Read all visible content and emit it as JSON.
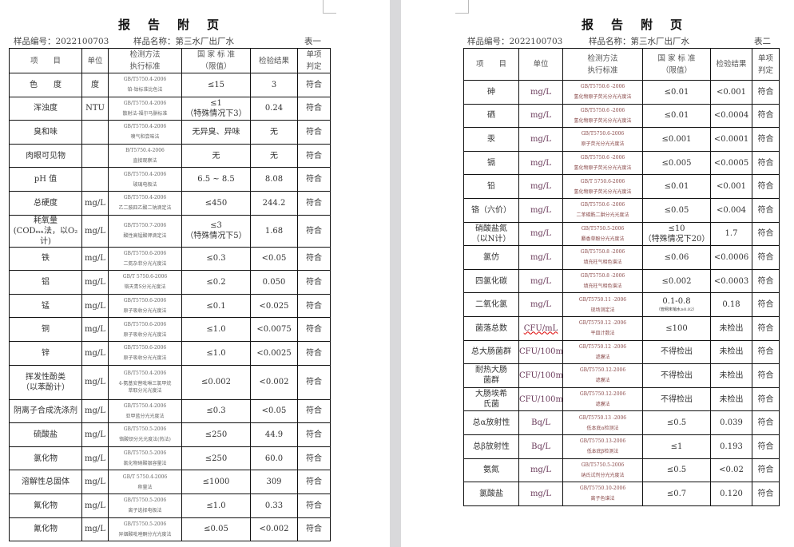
{
  "pages": [
    {
      "title": "报告附页",
      "sample_no": "样品编号：2022100703",
      "sample_name": "样品名称：第三水厂出厂水",
      "table_label": "表一",
      "headers": [
        "项　　目",
        "单位",
        "检测方法\n执行标准",
        "国 家 标 准\n（限值）",
        "检验结果",
        "单项\n判定"
      ],
      "rows": [
        {
          "item": "色　　度",
          "unit": "度",
          "std": "GB/T5750.4-2006",
          "method": "铂-钴标准比色法",
          "limit": "≤15",
          "result": "3",
          "verdict": "符合"
        },
        {
          "item": "浑浊度",
          "unit": "NTU",
          "std": "GB/T5750.4-2006",
          "method": "散射法-福尔马肼标准",
          "limit": "≤1\n（特殊情况下3）",
          "result": "0.24",
          "verdict": "符合"
        },
        {
          "item": "臭和味",
          "unit": "",
          "std": "GB/T5750.4-2006",
          "method": "嗅气和尝味法",
          "limit": "无异臭、异味",
          "result": "无",
          "verdict": "符合"
        },
        {
          "item": "肉眼可见物",
          "unit": "",
          "std": "B/T5750.4-2006",
          "method": "直接观察法",
          "limit": "无",
          "result": "无",
          "verdict": "符合"
        },
        {
          "item": "pH 值",
          "unit": "",
          "std": "GB/T5750.4-2006",
          "method": "玻璃电极法",
          "limit": "6.5 ~ 8.5",
          "result": "8.08",
          "verdict": "符合"
        },
        {
          "item": "总硬度",
          "unit": "mg/L",
          "std": "GB/T5750.4-2006",
          "method": "乙二胺四乙酸二钠滴定法",
          "limit": "≤450",
          "result": "244.2",
          "verdict": "符合"
        },
        {
          "item": "耗氧量\n(CODₘₙ法，以O₂计)",
          "unit": "mg/L",
          "std": "GB/T5750.7-2006",
          "method": "酸性高锰酸钾滴定法",
          "limit": "≤3\n（特殊情况下5）",
          "result": "1.68",
          "verdict": "符合"
        },
        {
          "item": "铁",
          "unit": "mg/L",
          "std": "GB/T5750.6-2006",
          "method": "二氮杂菲分光光度法",
          "limit": "≤0.3",
          "result": "<0.05",
          "verdict": "符合"
        },
        {
          "item": "铝",
          "unit": "mg/L",
          "std": "GB/T 5750.6-2006",
          "method": "铬天青S分光光度法",
          "limit": "≤0.2",
          "result": "0.050",
          "verdict": "符合"
        },
        {
          "item": "锰",
          "unit": "mg/L",
          "std": "GB/T5750.6-2006",
          "method": "原子吸收分光光度法",
          "limit": "≤0.1",
          "result": "<0.025",
          "verdict": "符合"
        },
        {
          "item": "铜",
          "unit": "mg/L",
          "std": "GB/T5750.6-2006",
          "method": "原子吸收分光光度法",
          "limit": "≤1.0",
          "result": "<0.0075",
          "verdict": "符合"
        },
        {
          "item": "锌",
          "unit": "mg/L",
          "std": "GB/T5750.6-2006",
          "method": "原子吸收分光光度法",
          "limit": "≤1.0",
          "result": "<0.0025",
          "verdict": "符合"
        },
        {
          "item": "挥发性酚类\n（以苯酚计）",
          "unit": "mg/L",
          "std": "GB/T5750.4-2006",
          "method": "4-氨基安替吡啉三氯甲烷\n萃取分光光度法",
          "limit": "≤0.002",
          "result": "<0.002",
          "verdict": "符合"
        },
        {
          "item": "阴离子合成洗涤剂",
          "unit": "mg/L",
          "std": "GB/T5750.4-2006",
          "method": "亚甲蓝分光光度法",
          "limit": "≤0.3",
          "result": "<0.05",
          "verdict": "符合"
        },
        {
          "item": "硫酸盐",
          "unit": "mg/L",
          "std": "GB/T5750.5-2006",
          "method": "铬酸钡分光光度法(热法)",
          "limit": "≤250",
          "result": "44.9",
          "verdict": "符合"
        },
        {
          "item": "氯化物",
          "unit": "mg/L",
          "std": "GB/T5750.5-2006",
          "method": "氯化物硝酸银容量法",
          "limit": "≤250",
          "result": "60.0",
          "verdict": "符合"
        },
        {
          "item": "溶解性总固体",
          "unit": "mg/L",
          "std": "GB/T 5750.4-2006",
          "method": "称量法",
          "limit": "≤1000",
          "result": "309",
          "verdict": "符合"
        },
        {
          "item": "氟化物",
          "unit": "mg/L",
          "std": "GB/T5750.5-2006",
          "method": "离子选择电极法",
          "limit": "≤1.0",
          "result": "0.33",
          "verdict": "符合"
        },
        {
          "item": "氰化物",
          "unit": "mg/L",
          "std": "GB/T5750.5-2006",
          "method": "异烟酸吡唑酮分光光度法",
          "limit": "≤0.05",
          "result": "<0.002",
          "verdict": "符合"
        }
      ]
    },
    {
      "title": "报告附页",
      "sample_no": "样品编号：2022100703",
      "sample_name": "样品名称：第三水厂出厂水",
      "table_label": "表二",
      "headers": [
        "项　　目",
        "单位",
        "检测方法\n执行标准",
        "国 家 标 准\n（限值）",
        "检验结果",
        "单项\n判定"
      ],
      "rows": [
        {
          "item": "砷",
          "unit": "mg/L",
          "std": "GB/T5750.6 -2006",
          "method": "氢化物原子荧光分光光度法",
          "limit": "≤0.01",
          "result": "<0.001",
          "verdict": "符合"
        },
        {
          "item": "硒",
          "unit": "mg/L",
          "std": "GB/T5750.6 -2006",
          "method": "氢化物原子荧光分光光度法",
          "limit": "≤0.01",
          "result": "<0.0004",
          "verdict": "符合"
        },
        {
          "item": "汞",
          "unit": "mg/L",
          "std": "GB/T5750.6-2006",
          "method": "原子荧光分光光度法",
          "limit": "≤0.001",
          "result": "<0.0001",
          "verdict": "符合"
        },
        {
          "item": "镉",
          "unit": "mg/L",
          "std": "GB/T5750.6 -2006",
          "method": "氢化物原子荧光分光光度法",
          "limit": "≤0.005",
          "result": "<0.0005",
          "verdict": "符合"
        },
        {
          "item": "铅",
          "unit": "mg/L",
          "std": "GB/T 5750.6-2006",
          "method": "氢化物原子荧光分光光度法",
          "limit": "≤0.01",
          "result": "<0.001",
          "verdict": "符合"
        },
        {
          "item": "铬（六价）",
          "unit": "mg/L",
          "std": "GB/T5750.6 -2006",
          "method": "二苯碳酰二肼分光光度法",
          "limit": "≤0.05",
          "result": "<0.004",
          "verdict": "符合"
        },
        {
          "item": "硝酸盐氮\n（以N计）",
          "unit": "mg/L",
          "std": "GB/T5750.5-2006",
          "method": "麝香草酚分光光度法",
          "limit": "≤10\n（特殊情况下20）",
          "result": "1.7",
          "verdict": "符合"
        },
        {
          "item": "氯仿",
          "unit": "mg/L",
          "std": "GB/T5750.8 -2006",
          "method": "填充柱气相色谱法",
          "limit": "≤0.06",
          "result": "<0.0006",
          "verdict": "符合"
        },
        {
          "item": "四氯化碳",
          "unit": "mg/L",
          "std": "GB/T5750.8 -2006",
          "method": "填充柱气相色谱法",
          "limit": "≤0.002",
          "result": "<0.0003",
          "verdict": "符合"
        },
        {
          "item": "二氧化氯",
          "unit": "mg/L",
          "std": "GB/T5750.11 -2006",
          "method": "现场测定法",
          "limit": "0.1-0.8",
          "limit_note": "（管网末梢水≥0.02）",
          "result": "0.18",
          "verdict": "符合"
        },
        {
          "item": "菌落总数",
          "unit": "CFU/mL",
          "std": "GB/T5750.12 -2006",
          "method": "平皿计数法",
          "limit": "≤100",
          "result": "未检出",
          "verdict": "符合"
        },
        {
          "item": "总大肠菌群",
          "unit": "CFU/100mL",
          "std": "GB/T5750.12 -2006",
          "method": "滤膜法",
          "limit": "不得检出",
          "result": "未检出",
          "verdict": "符合"
        },
        {
          "item": "耐热大肠\n菌群",
          "unit": "CFU/100mL",
          "std": "GB/T5750.12-2006",
          "method": "滤膜法",
          "limit": "不得检出",
          "result": "未检出",
          "verdict": "符合"
        },
        {
          "item": "大肠埃希\n氏菌",
          "unit": "CFU/100mL",
          "std": "GB/T5750.12-2006",
          "method": "滤膜法",
          "limit": "不得检出",
          "result": "未检出",
          "verdict": "符合"
        },
        {
          "item": "总α放射性",
          "unit": "Bq/L",
          "std": "GB/T5750.13 -2006",
          "method": "低本底α检测法",
          "limit": "≤0.5",
          "result": "0.039",
          "verdict": "符合"
        },
        {
          "item": "总β放射性",
          "unit": "Bq/L",
          "std": "GB/T5750.13-2006",
          "method": "低本底β检测法",
          "limit": "≤1",
          "result": "0.193",
          "verdict": "符合"
        },
        {
          "item": "氨氮",
          "unit": "mg/L",
          "std": "GB/T5750.5-2006",
          "method": "纳氏试剂分光光度法",
          "limit": "≤0.5",
          "result": "<0.02",
          "verdict": "符合"
        },
        {
          "item": "氯酸盐",
          "unit": "mg/L",
          "std": "GB/T5750.10-2006",
          "method": "离子色谱法",
          "limit": "≤0.7",
          "result": "0.120",
          "verdict": "符合"
        }
      ]
    }
  ]
}
